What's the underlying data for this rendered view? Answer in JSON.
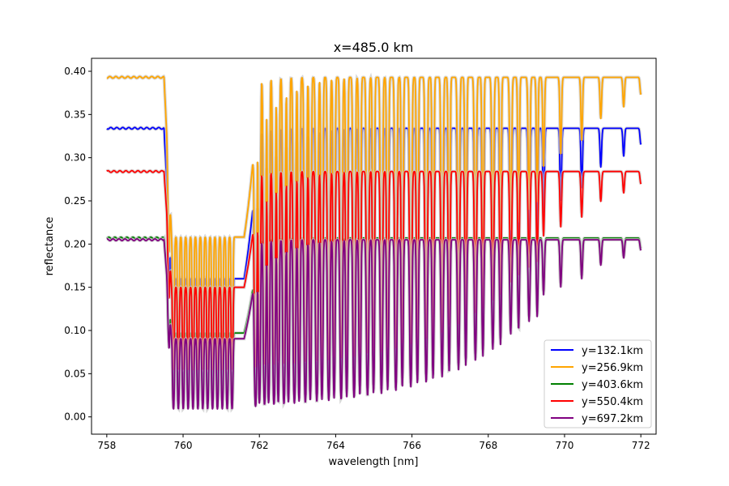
{
  "chart_data": {
    "type": "line",
    "title": "x=485.0 km",
    "xlabel": "wavelength [nm]",
    "ylabel": "reflectance",
    "xlim": [
      757.6,
      772.4
    ],
    "ylim": [
      -0.02,
      0.415
    ],
    "xticks": [
      758,
      760,
      762,
      764,
      766,
      768,
      770,
      772
    ],
    "yticks": [
      0.0,
      0.05,
      0.1,
      0.15,
      0.2,
      0.25,
      0.3,
      0.35,
      0.4
    ],
    "xtick_labels": [
      "758",
      "760",
      "762",
      "764",
      "766",
      "768",
      "770",
      "772"
    ],
    "ytick_labels": [
      "0.00",
      "0.05",
      "0.10",
      "0.15",
      "0.20",
      "0.25",
      "0.30",
      "0.35",
      "0.40"
    ],
    "grid": false,
    "legend_position": "lower-right",
    "x_start": 758.0,
    "x_end": 772.0,
    "continuum_edge_nm": 759.5,
    "series": [
      {
        "name": "y=132.1km",
        "color": "#0000ff",
        "continuum": 0.334,
        "floor": 0.03
      },
      {
        "name": "y=256.9km",
        "color": "#ffa500",
        "continuum": 0.393,
        "floor": 0.07
      },
      {
        "name": "y=403.6km",
        "color": "#008000",
        "continuum": 0.207,
        "floor": 0.015
      },
      {
        "name": "y=550.4km",
        "color": "#ff0000",
        "continuum": 0.284,
        "floor": 0.05
      },
      {
        "name": "y=697.2km",
        "color": "#800080",
        "continuum": 0.205,
        "floor": 0.005
      }
    ]
  }
}
